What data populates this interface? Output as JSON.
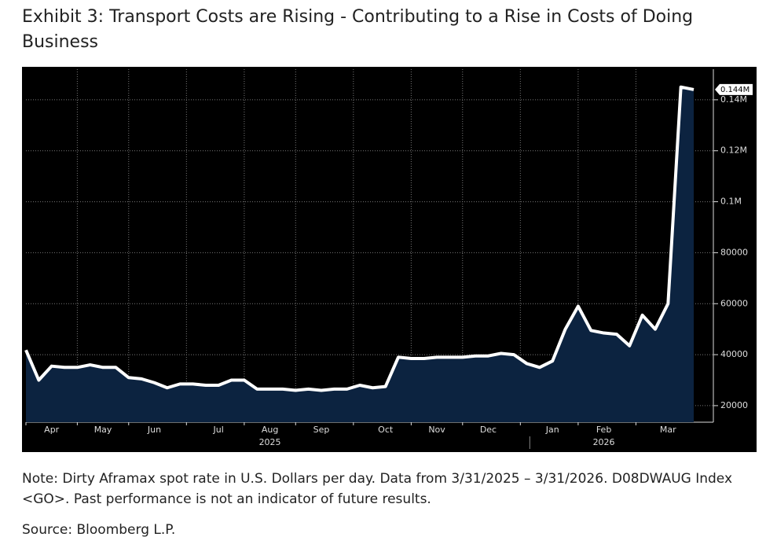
{
  "chart_data": {
    "type": "area",
    "title": "Exhibit 3: Transport Costs are Rising - Contributing to a Rise in Costs of Doing Business",
    "categories": [
      null,
      null,
      "Apr",
      null,
      null,
      null,
      "May",
      null,
      null,
      null,
      "Jun",
      null,
      null,
      null,
      null,
      "Jul",
      null,
      null,
      null,
      "Aug",
      null,
      null,
      null,
      "Sep",
      null,
      null,
      null,
      null,
      "Oct",
      null,
      null,
      null,
      "Nov",
      null,
      null,
      null,
      "Dec",
      null,
      null,
      null,
      null,
      "Jan",
      null,
      null,
      null,
      "Feb",
      null,
      null,
      null,
      null,
      "Mar",
      null,
      null
    ],
    "series": [
      {
        "color": "#ffffff",
        "fill": "#0c2340",
        "values": [
          41800,
          30000,
          35500,
          35000,
          35000,
          36000,
          35000,
          35000,
          31000,
          30500,
          29000,
          27000,
          28500,
          28500,
          28000,
          28000,
          30000,
          30000,
          26500,
          26500,
          26500,
          26000,
          26500,
          26000,
          26500,
          26500,
          28000,
          27000,
          27500,
          39000,
          38500,
          38500,
          39000,
          39000,
          39000,
          39500,
          39500,
          40500,
          40000,
          36500,
          35000,
          37500,
          50000,
          59000,
          49500,
          48500,
          48000,
          43500,
          55500,
          50000,
          60000,
          145000,
          144000
        ],
        "value_labels": [
          null,
          null,
          null,
          null,
          null,
          null,
          null,
          null,
          null,
          null,
          null,
          null,
          null,
          null,
          null,
          null,
          null,
          null,
          null,
          null,
          null,
          null,
          null,
          null,
          null,
          null,
          null,
          null,
          null,
          null,
          null,
          null,
          null,
          null,
          null,
          null,
          null,
          null,
          null,
          null,
          null,
          null,
          null,
          null,
          null,
          null,
          null,
          null,
          null,
          null,
          null,
          null,
          "0.144M"
        ]
      }
    ],
    "year_labels": [
      "2025",
      "2026"
    ],
    "ylim": [
      13500,
      152000
    ],
    "yticks": [
      20000,
      40000,
      60000,
      80000,
      {
        "value": 100000,
        "label": "0.1M"
      },
      {
        "value": 120000,
        "label": "0.12M"
      },
      {
        "value": 140000,
        "label": "0.14M"
      }
    ],
    "grid": true
  },
  "note": "Note: Dirty Aframax spot rate in U.S. Dollars per day. Data from 3/31/2025 – 3/31/2026. D08DWAUG Index <GO>. Past performance is not an indicator of future results.",
  "source": "Source: Bloomberg L.P."
}
